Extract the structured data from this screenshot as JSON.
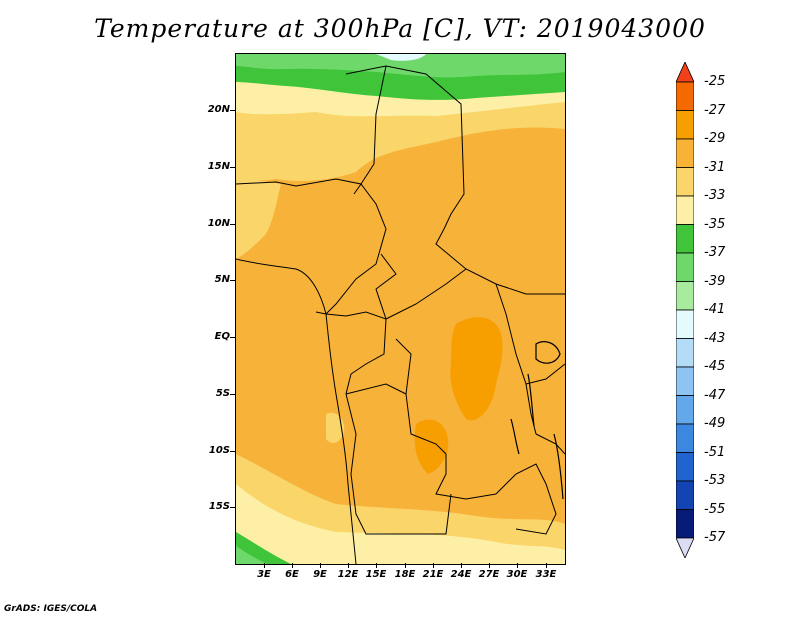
{
  "title": "Temperature at 300hPa [C], VT: 2019043000",
  "credit": "GrADS: IGES/COLA",
  "y_axis_labels": [
    "20N",
    "15N",
    "10N",
    "5N",
    "EQ",
    "5S",
    "10S",
    "15S"
  ],
  "x_axis_labels": [
    "3E",
    "6E",
    "9E",
    "12E",
    "15E",
    "18E",
    "21E",
    "24E",
    "27E",
    "30E",
    "33E"
  ],
  "colorbar": {
    "labels": [
      "-25",
      "-27",
      "-29",
      "-31",
      "-33",
      "-35",
      "-37",
      "-39",
      "-41",
      "-43",
      "-45",
      "-47",
      "-49",
      "-51",
      "-53",
      "-55",
      "-57"
    ],
    "colors": [
      "#f0411b",
      "#f56a00",
      "#f79e00",
      "#f8b337",
      "#fad56a",
      "#fdf0a6",
      "#3fc43a",
      "#6fd86b",
      "#a8eb9e",
      "#e4fbfd",
      "#b4dcf7",
      "#8dc4f2",
      "#64a8ec",
      "#3c88e0",
      "#1f64cf",
      "#1244b3",
      "#071c78",
      "#dcdcf5"
    ]
  }
}
